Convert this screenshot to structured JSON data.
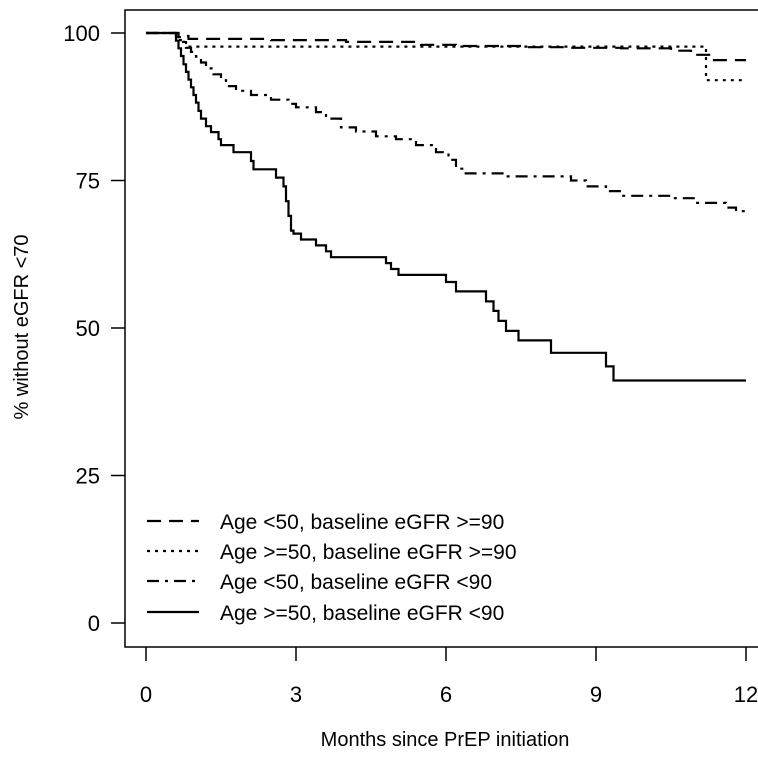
{
  "chart_data": {
    "type": "line",
    "subtype": "step",
    "title": "",
    "xlabel": "Months since PrEP initiation",
    "ylabel": "% without eGFR <70",
    "xlim": [
      0,
      12
    ],
    "ylim": [
      0,
      100
    ],
    "x_ticks": [
      0,
      3,
      6,
      9,
      12
    ],
    "y_ticks": [
      0,
      25,
      50,
      75,
      100
    ],
    "x_tick_labels": [
      "0",
      "3",
      "6",
      "9",
      "12"
    ],
    "y_tick_labels": [
      "0",
      "25",
      "50",
      "75",
      "100"
    ],
    "grid": false,
    "legend_position": "bottom-left",
    "series": [
      {
        "name": "Age <50, baseline eGFR >=90",
        "style": "dashed",
        "points": [
          [
            0,
            100
          ],
          [
            0.55,
            100
          ],
          [
            0.65,
            99.5
          ],
          [
            0.85,
            99.0
          ],
          [
            2.5,
            98.8
          ],
          [
            4.0,
            98.5
          ],
          [
            5.5,
            98.0
          ],
          [
            6.2,
            97.8
          ],
          [
            7.5,
            97.6
          ],
          [
            8.5,
            97.5
          ],
          [
            9.5,
            97.4
          ],
          [
            10.5,
            97.0
          ],
          [
            10.9,
            96.3
          ],
          [
            11.3,
            95.4
          ],
          [
            12,
            95.4
          ]
        ]
      },
      {
        "name": "Age >=50, baseline eGFR >=90",
        "style": "dotted",
        "points": [
          [
            0,
            100
          ],
          [
            0.55,
            100
          ],
          [
            0.65,
            98.8
          ],
          [
            0.8,
            97.7
          ],
          [
            11.2,
            97.7
          ],
          [
            11.2,
            92.0
          ],
          [
            12,
            92.0
          ]
        ]
      },
      {
        "name": "Age <50, baseline eGFR <90",
        "style": "dashdot",
        "points": [
          [
            0,
            100
          ],
          [
            0.55,
            100
          ],
          [
            0.6,
            99.3
          ],
          [
            0.7,
            98.5
          ],
          [
            0.8,
            97.5
          ],
          [
            0.9,
            96.8
          ],
          [
            1.0,
            96.0
          ],
          [
            1.1,
            95.0
          ],
          [
            1.2,
            94.0
          ],
          [
            1.35,
            93.0
          ],
          [
            1.5,
            92.0
          ],
          [
            1.6,
            91.0
          ],
          [
            1.8,
            90.2
          ],
          [
            2.1,
            89.5
          ],
          [
            2.5,
            88.7
          ],
          [
            2.85,
            88.0
          ],
          [
            3.0,
            87.4
          ],
          [
            3.4,
            86.6
          ],
          [
            3.6,
            85.5
          ],
          [
            3.9,
            84.0
          ],
          [
            4.2,
            83.3
          ],
          [
            4.6,
            82.5
          ],
          [
            5.0,
            82.0
          ],
          [
            5.4,
            81.0
          ],
          [
            5.8,
            79.8
          ],
          [
            6.05,
            78.5
          ],
          [
            6.2,
            77.0
          ],
          [
            6.35,
            76.2
          ],
          [
            7.2,
            75.7
          ],
          [
            8.5,
            75.0
          ],
          [
            8.8,
            74.0
          ],
          [
            9.2,
            73.2
          ],
          [
            9.5,
            72.4
          ],
          [
            10.5,
            72.0
          ],
          [
            11.0,
            71.2
          ],
          [
            11.6,
            70.4
          ],
          [
            11.8,
            69.8
          ],
          [
            12,
            69.8
          ]
        ]
      },
      {
        "name": "Age >=50, baseline eGFR <90",
        "style": "solid",
        "points": [
          [
            0,
            100
          ],
          [
            0.55,
            100
          ],
          [
            0.6,
            98.7
          ],
          [
            0.65,
            97.4
          ],
          [
            0.7,
            96.1
          ],
          [
            0.75,
            94.7
          ],
          [
            0.8,
            93.4
          ],
          [
            0.85,
            92.1
          ],
          [
            0.9,
            90.8
          ],
          [
            0.95,
            89.5
          ],
          [
            1.0,
            88.2
          ],
          [
            1.05,
            86.8
          ],
          [
            1.1,
            85.5
          ],
          [
            1.2,
            84.2
          ],
          [
            1.3,
            83.2
          ],
          [
            1.45,
            82.0
          ],
          [
            1.5,
            81.0
          ],
          [
            1.75,
            79.8
          ],
          [
            2.1,
            78.3
          ],
          [
            2.15,
            76.9
          ],
          [
            2.6,
            75.5
          ],
          [
            2.75,
            74.0
          ],
          [
            2.8,
            71.5
          ],
          [
            2.85,
            69.0
          ],
          [
            2.9,
            66.5
          ],
          [
            2.95,
            66.0
          ],
          [
            3.1,
            65.0
          ],
          [
            3.4,
            64.0
          ],
          [
            3.6,
            63.0
          ],
          [
            3.7,
            62.0
          ],
          [
            4.8,
            61.0
          ],
          [
            4.9,
            60.0
          ],
          [
            5.05,
            59.0
          ],
          [
            6.0,
            57.8
          ],
          [
            6.2,
            56.2
          ],
          [
            6.8,
            54.5
          ],
          [
            6.95,
            52.9
          ],
          [
            7.05,
            51.2
          ],
          [
            7.2,
            49.5
          ],
          [
            7.45,
            47.9
          ],
          [
            8.1,
            45.8
          ],
          [
            9.2,
            43.5
          ],
          [
            9.35,
            41.1
          ],
          [
            12,
            41.1
          ]
        ]
      }
    ]
  }
}
